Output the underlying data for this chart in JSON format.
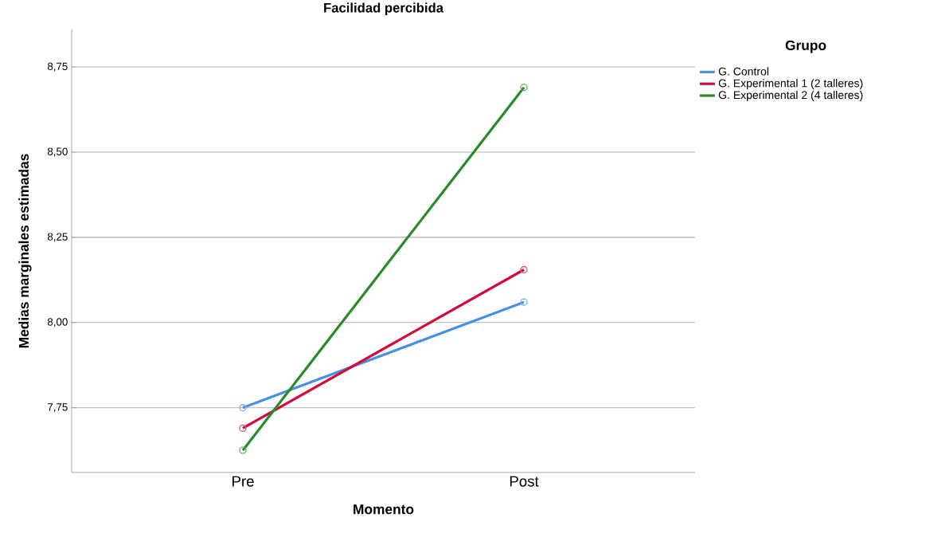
{
  "chart_data": {
    "type": "line",
    "title": "Facilidad percibida",
    "xlabel": "Momento",
    "ylabel": "Medias marginales estimadas",
    "legend_title": "Grupo",
    "categories": [
      "Pre",
      "Post"
    ],
    "series": [
      {
        "name": "G. Control",
        "color": "#4a90e2",
        "values": [
          7.75,
          8.06
        ]
      },
      {
        "name": "G. Experimental 1 (2 talleres)",
        "color": "#d3083c",
        "values": [
          7.69,
          8.155
        ]
      },
      {
        "name": "G. Experimental 2 (4 talleres)",
        "color": "#2a8a2a",
        "values": [
          7.625,
          8.69
        ]
      }
    ],
    "ylim": [
      7.56,
      8.86
    ],
    "yticks": [
      {
        "value": 7.75,
        "label": "7,75"
      },
      {
        "value": 8.0,
        "label": "8,00"
      },
      {
        "value": 8.25,
        "label": "8,25"
      },
      {
        "value": 8.5,
        "label": "8,50"
      },
      {
        "value": 8.75,
        "label": "8,75"
      }
    ],
    "grid": "y",
    "legend": "top right",
    "marker": "circle",
    "line_style": "solid"
  }
}
